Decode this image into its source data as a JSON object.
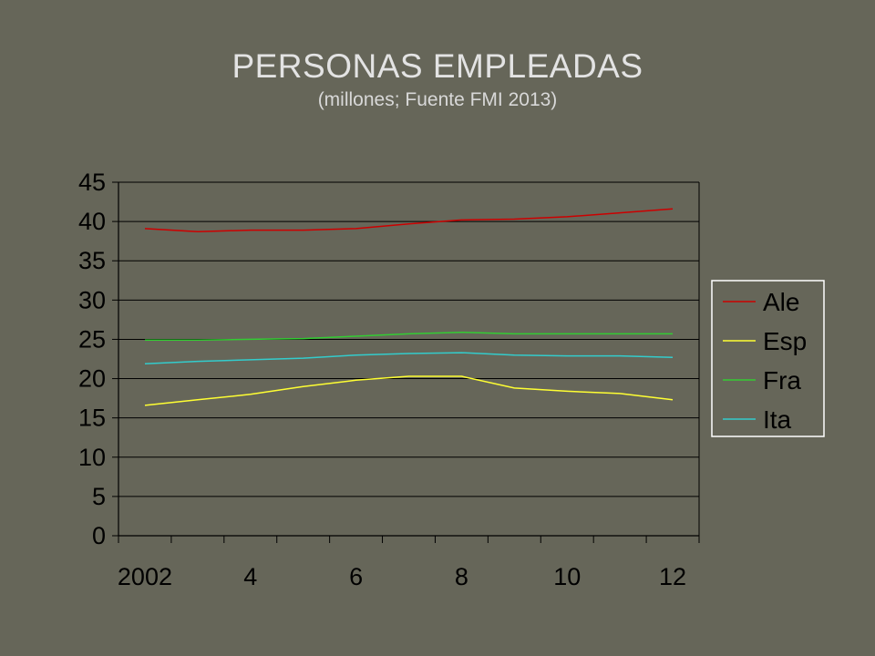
{
  "slide": {
    "title": "PERSONAS EMPLEADAS",
    "subtitle": "(millones; Fuente FMI 2013)"
  },
  "chart_data": {
    "type": "line",
    "title": "PERSONAS EMPLEADAS",
    "subtitle": "(millones; Fuente FMI 2013)",
    "xlabel": "",
    "ylabel": "",
    "x": [
      2002,
      2003,
      2004,
      2005,
      2006,
      2007,
      2008,
      2009,
      2010,
      2011,
      2012
    ],
    "x_tick_values": [
      2002,
      2004,
      2006,
      2008,
      2010,
      2012
    ],
    "x_tick_labels": [
      "2002",
      "4",
      "6",
      "8",
      "10",
      "12"
    ],
    "xlim": [
      2001.5,
      2012.5
    ],
    "ylim": [
      0,
      45
    ],
    "y_ticks": [
      0,
      5,
      10,
      15,
      20,
      25,
      30,
      35,
      40,
      45
    ],
    "grid": "horizontal",
    "legend_position": "right",
    "series": [
      {
        "name": "Ale",
        "color": "#cc0000",
        "values": [
          39.1,
          38.7,
          38.9,
          38.9,
          39.1,
          39.7,
          40.2,
          40.3,
          40.6,
          41.1,
          41.6
        ]
      },
      {
        "name": "Esp",
        "color": "#ffff33",
        "values": [
          16.6,
          17.3,
          18.0,
          19.0,
          19.8,
          20.3,
          20.3,
          18.8,
          18.4,
          18.1,
          17.3
        ]
      },
      {
        "name": "Fra",
        "color": "#33cc33",
        "values": [
          24.9,
          24.9,
          25.0,
          25.1,
          25.4,
          25.7,
          25.9,
          25.7,
          25.7,
          25.7,
          25.7
        ]
      },
      {
        "name": "Ita",
        "color": "#33cccc",
        "values": [
          21.9,
          22.2,
          22.4,
          22.6,
          23.0,
          23.2,
          23.3,
          23.0,
          22.9,
          22.9,
          22.7
        ]
      }
    ]
  }
}
